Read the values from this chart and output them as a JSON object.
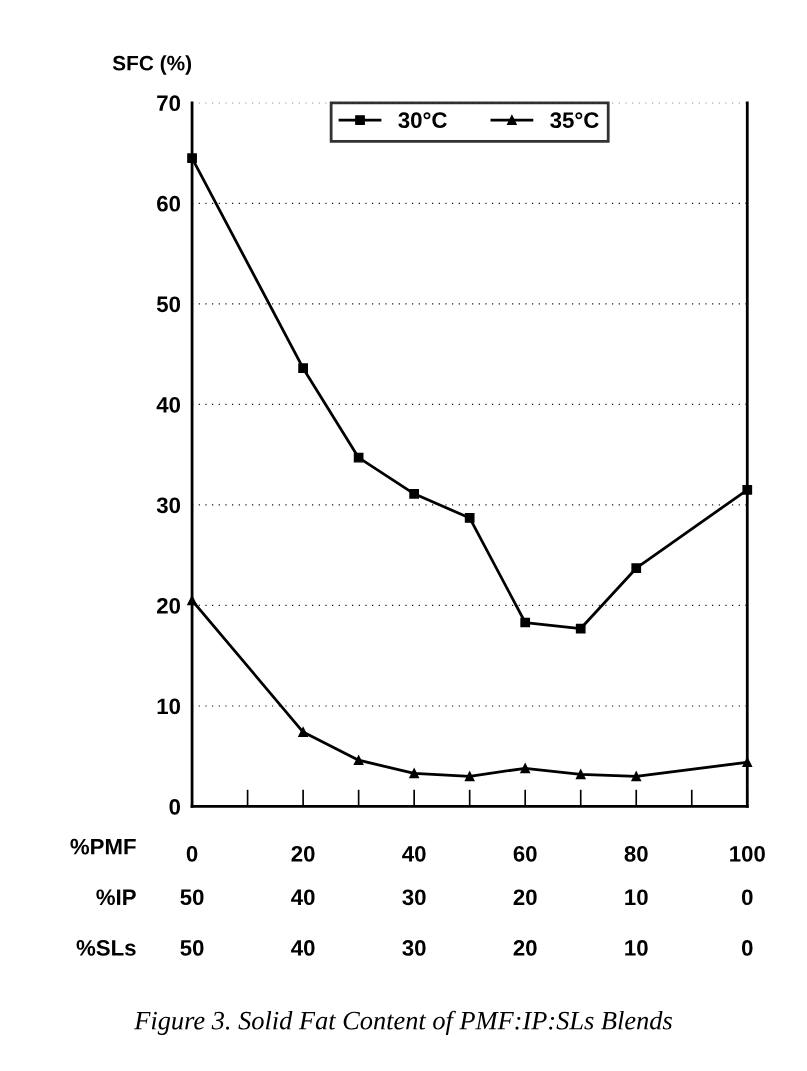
{
  "chart_data": {
    "type": "line",
    "ylabel": "SFC (%)",
    "xlabel": "%PMF",
    "annotations": [
      "%IP",
      "50",
      "40",
      "30",
      "20",
      "10",
      "0",
      "%SLs",
      "50",
      "40",
      "30",
      "20",
      "10",
      "0",
      "Figure 3. Solid Fat Content of PMF:IP:SLs Blends"
    ],
    "x": [
      0,
      20,
      30,
      40,
      50,
      60,
      70,
      80,
      100
    ],
    "series": [
      {
        "name": "30°C",
        "color": "#000000",
        "marker": "square",
        "values": [
          64.5,
          43.6,
          34.7,
          31.1,
          28.7,
          18.3,
          17.7,
          23.7,
          31.5
        ]
      },
      {
        "name": "35°C",
        "color": "#000000",
        "marker": "triangle",
        "values": [
          20.5,
          7.4,
          4.6,
          3.3,
          3.0,
          3.8,
          3.2,
          3.0,
          4.4
        ]
      }
    ],
    "xlim": [
      0,
      100
    ],
    "xticks": [
      0,
      20,
      40,
      60,
      80,
      100
    ],
    "ylim": [
      0,
      70
    ],
    "yticks": [
      0,
      10,
      20,
      30,
      40,
      50,
      60,
      70
    ],
    "grid": "y",
    "legend": "top",
    "line_style": "solid"
  }
}
